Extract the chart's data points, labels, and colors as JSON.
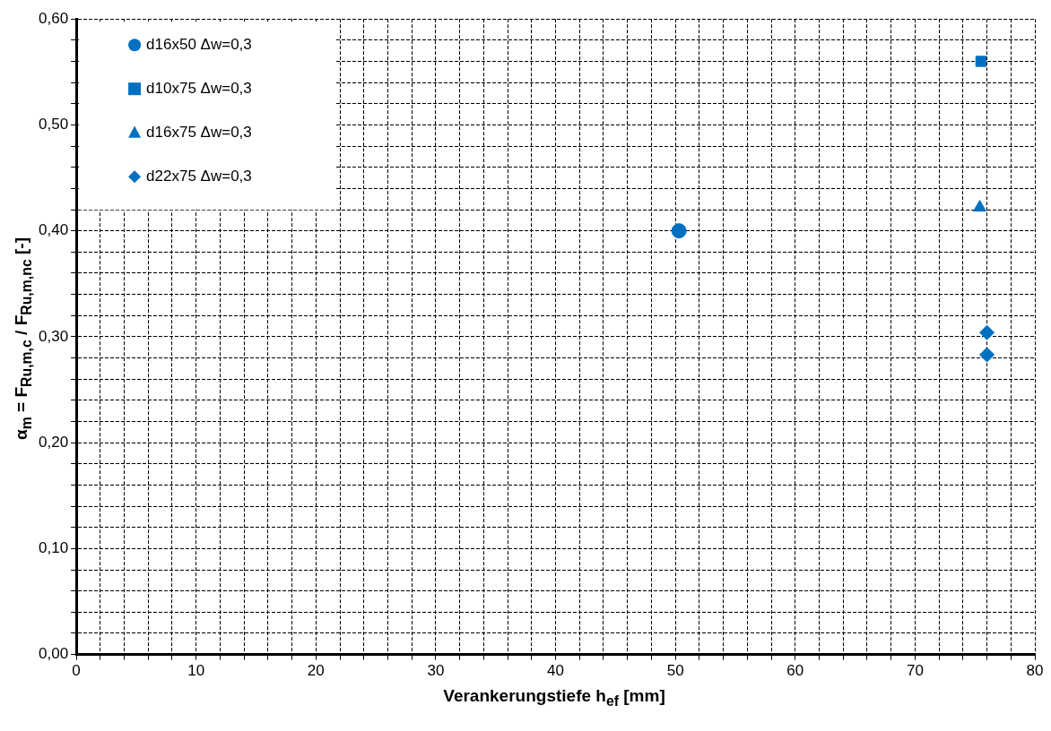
{
  "chart_data": {
    "type": "scatter",
    "xlabel": "Verankerungstiefe h$_{ef}$ [mm]",
    "ylabel": "α$_{m}$ = F$_{Ru,m,c}$ / F$_{Ru,m,nc}$ [-]",
    "xlim": [
      0,
      80
    ],
    "ylim": [
      0,
      0.6
    ],
    "xticks": [
      0,
      {
        "value": 2,
        "label": null
      },
      {
        "value": 4,
        "label": null
      },
      {
        "value": 6,
        "label": null
      },
      {
        "value": 8,
        "label": null
      },
      10,
      {
        "value": 12,
        "label": null
      },
      {
        "value": 14,
        "label": null
      },
      {
        "value": 16,
        "label": null
      },
      {
        "value": 18,
        "label": null
      },
      20,
      {
        "value": 22,
        "label": null
      },
      {
        "value": 24,
        "label": null
      },
      {
        "value": 26,
        "label": null
      },
      {
        "value": 28,
        "label": null
      },
      30,
      {
        "value": 32,
        "label": null
      },
      {
        "value": 34,
        "label": null
      },
      {
        "value": 36,
        "label": null
      },
      {
        "value": 38,
        "label": null
      },
      40,
      {
        "value": 42,
        "label": null
      },
      {
        "value": 44,
        "label": null
      },
      {
        "value": 46,
        "label": null
      },
      {
        "value": 48,
        "label": null
      },
      50,
      {
        "value": 52,
        "label": null
      },
      {
        "value": 54,
        "label": null
      },
      {
        "value": 56,
        "label": null
      },
      {
        "value": 58,
        "label": null
      },
      60,
      {
        "value": 62,
        "label": null
      },
      {
        "value": 64,
        "label": null
      },
      {
        "value": 66,
        "label": null
      },
      {
        "value": 68,
        "label": null
      },
      70,
      {
        "value": 72,
        "label": null
      },
      {
        "value": 74,
        "label": null
      },
      {
        "value": 76,
        "label": null
      },
      {
        "value": 78,
        "label": null
      },
      80
    ],
    "yticks": [
      {
        "value": 0,
        "label": "0,00"
      },
      {
        "value": 0.02,
        "label": null
      },
      {
        "value": 0.04,
        "label": null
      },
      {
        "value": 0.06,
        "label": null
      },
      {
        "value": 0.08,
        "label": null
      },
      {
        "value": 0.1,
        "label": "0,10"
      },
      {
        "value": 0.12,
        "label": null
      },
      {
        "value": 0.14,
        "label": null
      },
      {
        "value": 0.16,
        "label": null
      },
      {
        "value": 0.18,
        "label": null
      },
      {
        "value": 0.2,
        "label": "0,20"
      },
      {
        "value": 0.22,
        "label": null
      },
      {
        "value": 0.24,
        "label": null
      },
      {
        "value": 0.26,
        "label": null
      },
      {
        "value": 0.28,
        "label": null
      },
      {
        "value": 0.3,
        "label": "0,30"
      },
      {
        "value": 0.32,
        "label": null
      },
      {
        "value": 0.34,
        "label": null
      },
      {
        "value": 0.36,
        "label": null
      },
      {
        "value": 0.38,
        "label": null
      },
      {
        "value": 0.4,
        "label": "0,40"
      },
      {
        "value": 0.42,
        "label": null
      },
      {
        "value": 0.44,
        "label": null
      },
      {
        "value": 0.46,
        "label": null
      },
      {
        "value": 0.48,
        "label": null
      },
      {
        "value": 0.5,
        "label": "0,50"
      },
      {
        "value": 0.52,
        "label": null
      },
      {
        "value": 0.54,
        "label": null
      },
      {
        "value": 0.56,
        "label": null
      },
      {
        "value": 0.58,
        "label": null
      },
      {
        "value": 0.6,
        "label": "0,60"
      }
    ],
    "grid": true,
    "legend": "top left",
    "line_style": "dashed",
    "series": [
      {
        "name": "d16x50 Δw=0,3",
        "color": "#0070c0",
        "marker": "circle",
        "x": [
          50.3
        ],
        "values": [
          0.4
        ]
      },
      {
        "name": "d10x75 Δw=0,3",
        "color": "#0070c0",
        "marker": "square",
        "x": [
          75.5
        ],
        "values": [
          0.56
        ]
      },
      {
        "name": "d16x75 Δw=0,3",
        "color": "#0070c0",
        "marker": "triangle",
        "x": [
          75.4
        ],
        "values": [
          0.422
        ]
      },
      {
        "name": "d22x75 Δw=0,3",
        "color": "#0070c0",
        "marker": "diamond",
        "x": [
          76.0,
          76.0
        ],
        "values": [
          0.304,
          0.283
        ]
      }
    ]
  }
}
